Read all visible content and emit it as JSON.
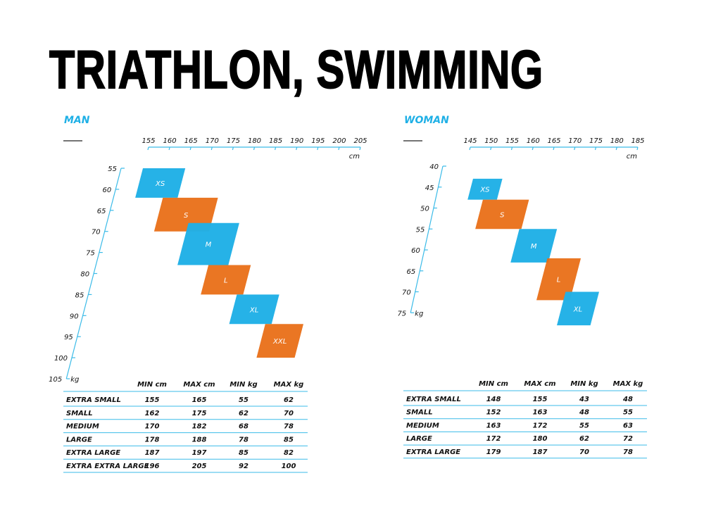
{
  "title": "TRIATHLON, SWIMMING",
  "colors": {
    "blue": "#1fb0e6",
    "orange": "#e86c12",
    "axis": "#3bbbe8"
  },
  "chart_data": [
    {
      "type": "table",
      "section": "MAN",
      "x_axis": {
        "unit": "cm",
        "ticks": [
          155,
          160,
          165,
          170,
          175,
          180,
          185,
          190,
          195,
          200,
          205
        ],
        "range": [
          155,
          205
        ]
      },
      "y_axis": {
        "unit": "kg",
        "ticks": [
          55,
          60,
          65,
          70,
          75,
          80,
          85,
          90,
          95,
          100,
          105
        ],
        "range": [
          55,
          105
        ]
      },
      "columns": [
        "MIN cm",
        "MAX cm",
        "MIN kg",
        "MAX kg"
      ],
      "rows": [
        {
          "name": "EXTRA SMALL",
          "short": "XS",
          "values": [
            155,
            165,
            55,
            62
          ],
          "color": "blue"
        },
        {
          "name": "SMALL",
          "short": "S",
          "values": [
            162,
            175,
            62,
            70
          ],
          "color": "orange"
        },
        {
          "name": "MEDIUM",
          "short": "M",
          "values": [
            170,
            182,
            68,
            78
          ],
          "color": "blue"
        },
        {
          "name": "LARGE",
          "short": "L",
          "values": [
            178,
            188,
            78,
            85
          ],
          "color": "orange"
        },
        {
          "name": "EXTRA LARGE",
          "short": "XL",
          "values": [
            187,
            197,
            85,
            82
          ],
          "color": "blue"
        },
        {
          "name": "EXTRA EXTRA LARGE",
          "short": "XXL",
          "values": [
            196,
            205,
            92,
            100
          ],
          "color": "orange"
        }
      ]
    },
    {
      "type": "table",
      "section": "WOMAN",
      "x_axis": {
        "unit": "cm",
        "ticks": [
          145,
          150,
          155,
          160,
          165,
          170,
          175,
          180,
          185
        ],
        "range": [
          145,
          185
        ]
      },
      "y_axis": {
        "unit": "kg",
        "ticks": [
          40,
          45,
          50,
          55,
          60,
          65,
          70,
          75
        ],
        "range": [
          40,
          75
        ]
      },
      "columns": [
        "MIN cm",
        "MAX cm",
        "MIN kg",
        "MAX kg"
      ],
      "rows": [
        {
          "name": "EXTRA SMALL",
          "short": "XS",
          "values": [
            148,
            155,
            43,
            48
          ],
          "color": "blue"
        },
        {
          "name": "SMALL",
          "short": "S",
          "values": [
            152,
            163,
            48,
            55
          ],
          "color": "orange"
        },
        {
          "name": "MEDIUM",
          "short": "M",
          "values": [
            163,
            172,
            55,
            63
          ],
          "color": "blue"
        },
        {
          "name": "LARGE",
          "short": "L",
          "values": [
            172,
            180,
            62,
            72
          ],
          "color": "orange"
        },
        {
          "name": "EXTRA LARGE",
          "short": "XL",
          "values": [
            179,
            187,
            70,
            78
          ],
          "color": "blue"
        }
      ]
    }
  ]
}
